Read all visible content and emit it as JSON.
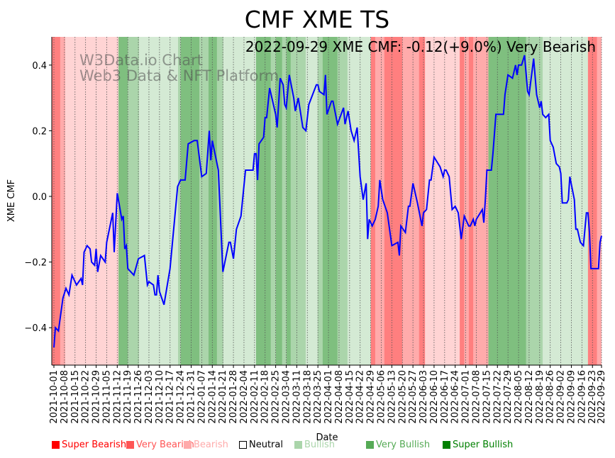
{
  "chart_data": {
    "type": "line",
    "title": "CMF XME TS",
    "annotation": "2022-09-29 XME CMF: -0.12(+9.0%) Very Bearish",
    "watermark": [
      "W3Data.io Chart",
      "Web3 Data & NFT Platform"
    ],
    "xlabel": "Date",
    "ylabel": "XME CMF",
    "x_unit": "days since 2021-10-01",
    "xlim": [
      -1.4,
      363
    ],
    "ylim": [
      -0.514,
      0.486
    ],
    "yticks": [
      -0.4,
      -0.2,
      0.0,
      0.2,
      0.4
    ],
    "ytick_labels": [
      "−0.4",
      "−0.2",
      "0.0",
      "0.2",
      "0.4"
    ],
    "xtick_labels": [
      "2021-10-01",
      "2021-10-08",
      "2021-10-15",
      "2021-10-22",
      "2021-10-29",
      "2021-11-05",
      "2021-11-12",
      "2021-11-19",
      "2021-11-26",
      "2021-12-03",
      "2021-12-10",
      "2021-12-17",
      "2021-12-24",
      "2021-12-31",
      "2022-01-07",
      "2022-01-14",
      "2022-01-21",
      "2022-01-28",
      "2022-02-04",
      "2022-02-11",
      "2022-02-18",
      "2022-02-25",
      "2022-03-04",
      "2022-03-11",
      "2022-03-18",
      "2022-03-25",
      "2022-04-01",
      "2022-04-08",
      "2022-04-15",
      "2022-04-22",
      "2022-04-29",
      "2022-05-06",
      "2022-05-13",
      "2022-05-20",
      "2022-05-27",
      "2022-06-03",
      "2022-06-10",
      "2022-06-17",
      "2022-06-24",
      "2022-07-01",
      "2022-07-08",
      "2022-07-15",
      "2022-07-22",
      "2022-07-29",
      "2022-08-05",
      "2022-08-12",
      "2022-08-19",
      "2022-08-26",
      "2022-09-02",
      "2022-09-09",
      "2022-09-16",
      "2022-09-23",
      "2022-09-29"
    ],
    "xtick_days": [
      0,
      7,
      14,
      21,
      28,
      35,
      42,
      49,
      56,
      63,
      70,
      77,
      84,
      91,
      98,
      105,
      112,
      119,
      126,
      133,
      140,
      147,
      154,
      161,
      168,
      175,
      182,
      189,
      196,
      203,
      210,
      217,
      224,
      231,
      238,
      245,
      252,
      259,
      266,
      273,
      280,
      287,
      294,
      301,
      308,
      315,
      322,
      329,
      336,
      343,
      350,
      357,
      363
    ],
    "grid": "vertical dotted at x ticks",
    "legend_placement": "bottom",
    "series": [
      {
        "name": "XME CMF",
        "color": "#0000ff",
        "points": [
          [
            0,
            -0.46
          ],
          [
            1,
            -0.4
          ],
          [
            3,
            -0.41
          ],
          [
            6,
            -0.31
          ],
          [
            8,
            -0.28
          ],
          [
            10,
            -0.3
          ],
          [
            12,
            -0.24
          ],
          [
            15,
            -0.27
          ],
          [
            18,
            -0.25
          ],
          [
            19,
            -0.27
          ],
          [
            20,
            -0.17
          ],
          [
            22,
            -0.15
          ],
          [
            24,
            -0.16
          ],
          [
            25,
            -0.2
          ],
          [
            27,
            -0.21
          ],
          [
            28,
            -0.16
          ],
          [
            29,
            -0.23
          ],
          [
            31,
            -0.18
          ],
          [
            34,
            -0.2
          ],
          [
            35,
            -0.14
          ],
          [
            39,
            -0.05
          ],
          [
            40,
            -0.17
          ],
          [
            42,
            0.01
          ],
          [
            45,
            -0.07
          ],
          [
            46,
            -0.06
          ],
          [
            47,
            -0.16
          ],
          [
            48,
            -0.15
          ],
          [
            49,
            -0.22
          ],
          [
            53,
            -0.24
          ],
          [
            56,
            -0.19
          ],
          [
            60,
            -0.18
          ],
          [
            62,
            -0.27
          ],
          [
            63,
            -0.26
          ],
          [
            66,
            -0.27
          ],
          [
            67,
            -0.3
          ],
          [
            68,
            -0.3
          ],
          [
            69,
            -0.24
          ],
          [
            70,
            -0.29
          ],
          [
            73,
            -0.33
          ],
          [
            77,
            -0.22
          ],
          [
            82,
            0.03
          ],
          [
            84,
            0.05
          ],
          [
            87,
            0.05
          ],
          [
            89,
            0.16
          ],
          [
            93,
            0.17
          ],
          [
            95,
            0.17
          ],
          [
            98,
            0.06
          ],
          [
            101,
            0.07
          ],
          [
            103,
            0.2
          ],
          [
            104,
            0.11
          ],
          [
            105,
            0.17
          ],
          [
            109,
            0.08
          ],
          [
            112,
            -0.23
          ],
          [
            116,
            -0.14
          ],
          [
            117,
            -0.14
          ],
          [
            119,
            -0.19
          ],
          [
            121,
            -0.1
          ],
          [
            124,
            -0.06
          ],
          [
            127,
            0.08
          ],
          [
            129,
            0.08
          ],
          [
            132,
            0.08
          ],
          [
            133,
            0.13
          ],
          [
            134,
            0.13
          ],
          [
            135,
            0.05
          ],
          [
            136,
            0.16
          ],
          [
            139,
            0.18
          ],
          [
            140,
            0.24
          ],
          [
            141,
            0.24
          ],
          [
            143,
            0.33
          ],
          [
            147,
            0.25
          ],
          [
            148,
            0.21
          ],
          [
            150,
            0.36
          ],
          [
            152,
            0.34
          ],
          [
            153,
            0.28
          ],
          [
            154,
            0.27
          ],
          [
            156,
            0.37
          ],
          [
            159,
            0.3
          ],
          [
            160,
            0.26
          ],
          [
            162,
            0.3
          ],
          [
            165,
            0.21
          ],
          [
            167,
            0.2
          ],
          [
            169,
            0.28
          ],
          [
            174,
            0.34
          ],
          [
            175,
            0.34
          ],
          [
            176,
            0.32
          ],
          [
            179,
            0.31
          ],
          [
            180,
            0.37
          ],
          [
            181,
            0.25
          ],
          [
            184,
            0.29
          ],
          [
            185,
            0.29
          ],
          [
            188,
            0.22
          ],
          [
            192,
            0.27
          ],
          [
            193,
            0.22
          ],
          [
            195,
            0.26
          ],
          [
            197,
            0.2
          ],
          [
            199,
            0.17
          ],
          [
            201,
            0.21
          ],
          [
            203,
            0.06
          ],
          [
            205,
            -0.01
          ],
          [
            207,
            0.04
          ],
          [
            208,
            -0.13
          ],
          [
            209,
            -0.07
          ],
          [
            211,
            -0.09
          ],
          [
            213,
            -0.07
          ],
          [
            215,
            -0.03
          ],
          [
            216,
            0.05
          ],
          [
            218,
            -0.01
          ],
          [
            221,
            -0.05
          ],
          [
            224,
            -0.15
          ],
          [
            228,
            -0.14
          ],
          [
            229,
            -0.18
          ],
          [
            230,
            -0.09
          ],
          [
            233,
            -0.11
          ],
          [
            235,
            -0.03
          ],
          [
            236,
            -0.03
          ],
          [
            238,
            0.04
          ],
          [
            241,
            -0.02
          ],
          [
            244,
            -0.09
          ],
          [
            245,
            -0.05
          ],
          [
            247,
            -0.04
          ],
          [
            249,
            0.05
          ],
          [
            250,
            0.05
          ],
          [
            252,
            0.12
          ],
          [
            256,
            0.09
          ],
          [
            258,
            0.06
          ],
          [
            259,
            0.08
          ],
          [
            260,
            0.08
          ],
          [
            262,
            0.06
          ],
          [
            264,
            -0.04
          ],
          [
            266,
            -0.03
          ],
          [
            268,
            -0.05
          ],
          [
            270,
            -0.13
          ],
          [
            272,
            -0.06
          ],
          [
            275,
            -0.09
          ],
          [
            276,
            -0.09
          ],
          [
            278,
            -0.07
          ],
          [
            279,
            -0.09
          ],
          [
            280,
            -0.07
          ],
          [
            284,
            -0.04
          ],
          [
            285,
            -0.08
          ],
          [
            286,
            -0.01
          ],
          [
            287,
            0.08
          ],
          [
            290,
            0.08
          ],
          [
            291,
            0.13
          ],
          [
            293,
            0.25
          ],
          [
            297,
            0.25
          ],
          [
            298,
            0.25
          ],
          [
            299,
            0.31
          ],
          [
            301,
            0.37
          ],
          [
            304,
            0.36
          ],
          [
            306,
            0.4
          ],
          [
            307,
            0.37
          ],
          [
            308,
            0.4
          ],
          [
            310,
            0.4
          ],
          [
            312,
            0.43
          ],
          [
            314,
            0.32
          ],
          [
            315,
            0.31
          ],
          [
            318,
            0.42
          ],
          [
            320,
            0.31
          ],
          [
            322,
            0.27
          ],
          [
            323,
            0.29
          ],
          [
            324,
            0.25
          ],
          [
            326,
            0.24
          ],
          [
            328,
            0.25
          ],
          [
            329,
            0.17
          ],
          [
            331,
            0.15
          ],
          [
            333,
            0.1
          ],
          [
            335,
            0.09
          ],
          [
            336,
            0.07
          ],
          [
            337,
            -0.02
          ],
          [
            340,
            -0.02
          ],
          [
            341,
            -0.01
          ],
          [
            342,
            0.06
          ],
          [
            345,
            -0.01
          ],
          [
            346,
            -0.1
          ],
          [
            347,
            -0.1
          ],
          [
            349,
            -0.14
          ],
          [
            351,
            -0.15
          ],
          [
            353,
            -0.05
          ],
          [
            354,
            -0.05
          ],
          [
            355,
            -0.11
          ],
          [
            356,
            -0.22
          ],
          [
            360,
            -0.22
          ],
          [
            361,
            -0.22
          ],
          [
            362,
            -0.14
          ],
          [
            363,
            -0.12
          ]
        ]
      }
    ],
    "regimes": [
      [
        -1.4,
        4.2,
        "super_bearish"
      ],
      [
        4.2,
        7.5,
        "very_bearish"
      ],
      [
        7.5,
        42.8,
        "bearish"
      ],
      [
        42.8,
        48.9,
        "super_bullish"
      ],
      [
        48.9,
        56.4,
        "very_bullish"
      ],
      [
        56.4,
        82.3,
        "bullish"
      ],
      [
        82.3,
        84.1,
        "very_bullish"
      ],
      [
        84.1,
        96.4,
        "super_bullish"
      ],
      [
        96.4,
        102.5,
        "very_bullish"
      ],
      [
        102.5,
        108.1,
        "super_bullish"
      ],
      [
        108.1,
        112.3,
        "very_bullish"
      ],
      [
        112.3,
        134,
        "bullish"
      ],
      [
        134,
        143.8,
        "super_bullish"
      ],
      [
        143.8,
        147.1,
        "very_bullish"
      ],
      [
        147.1,
        151.3,
        "super_bullish"
      ],
      [
        151.3,
        154.2,
        "very_bullish"
      ],
      [
        154.2,
        157,
        "super_bullish"
      ],
      [
        157,
        166.9,
        "very_bullish"
      ],
      [
        166.9,
        174.8,
        "bullish"
      ],
      [
        174.8,
        178.1,
        "very_bullish"
      ],
      [
        178.1,
        188,
        "super_bullish"
      ],
      [
        188,
        194.6,
        "very_bullish"
      ],
      [
        194.6,
        210,
        "bullish"
      ],
      [
        210,
        213,
        "super_bearish"
      ],
      [
        213,
        219,
        "very_bearish"
      ],
      [
        219,
        231,
        "super_bearish"
      ],
      [
        231,
        242,
        "very_bearish"
      ],
      [
        242,
        246,
        "super_bearish"
      ],
      [
        246,
        269,
        "bearish"
      ],
      [
        269,
        272,
        "super_bearish"
      ],
      [
        272,
        275,
        "very_bearish"
      ],
      [
        275,
        278,
        "super_bearish"
      ],
      [
        278,
        288,
        "very_bearish"
      ],
      [
        288,
        313,
        "super_bullish"
      ],
      [
        313,
        324,
        "very_bullish"
      ],
      [
        324,
        354,
        "bullish"
      ],
      [
        354,
        360,
        "super_bearish"
      ],
      [
        360,
        363,
        "very_bearish"
      ]
    ],
    "legend": [
      {
        "key": "super_bearish",
        "label": "Super Bearish",
        "color": "#ff0000",
        "band": "rgba(255,0,0,0.5)"
      },
      {
        "key": "very_bearish",
        "label": "Very Bearish",
        "color": "#ff5555",
        "band": "rgba(255,0,0,0.33)"
      },
      {
        "key": "bearish",
        "label": "Bearish",
        "color": "#ffaaaa",
        "band": "rgba(255,0,0,0.17)"
      },
      {
        "key": "neutral",
        "label": "Neutral",
        "color": "#ffffff",
        "band": "rgba(255,255,255,0)"
      },
      {
        "key": "bullish",
        "label": "Bullish",
        "color": "#aad5aa",
        "band": "rgba(0,128,0,0.17)"
      },
      {
        "key": "very_bullish",
        "label": "Very Bullish",
        "color": "#55aa55",
        "band": "rgba(0,128,0,0.33)"
      },
      {
        "key": "super_bullish",
        "label": "Super Bullish",
        "color": "#008000",
        "band": "rgba(0,128,0,0.5)"
      }
    ]
  }
}
